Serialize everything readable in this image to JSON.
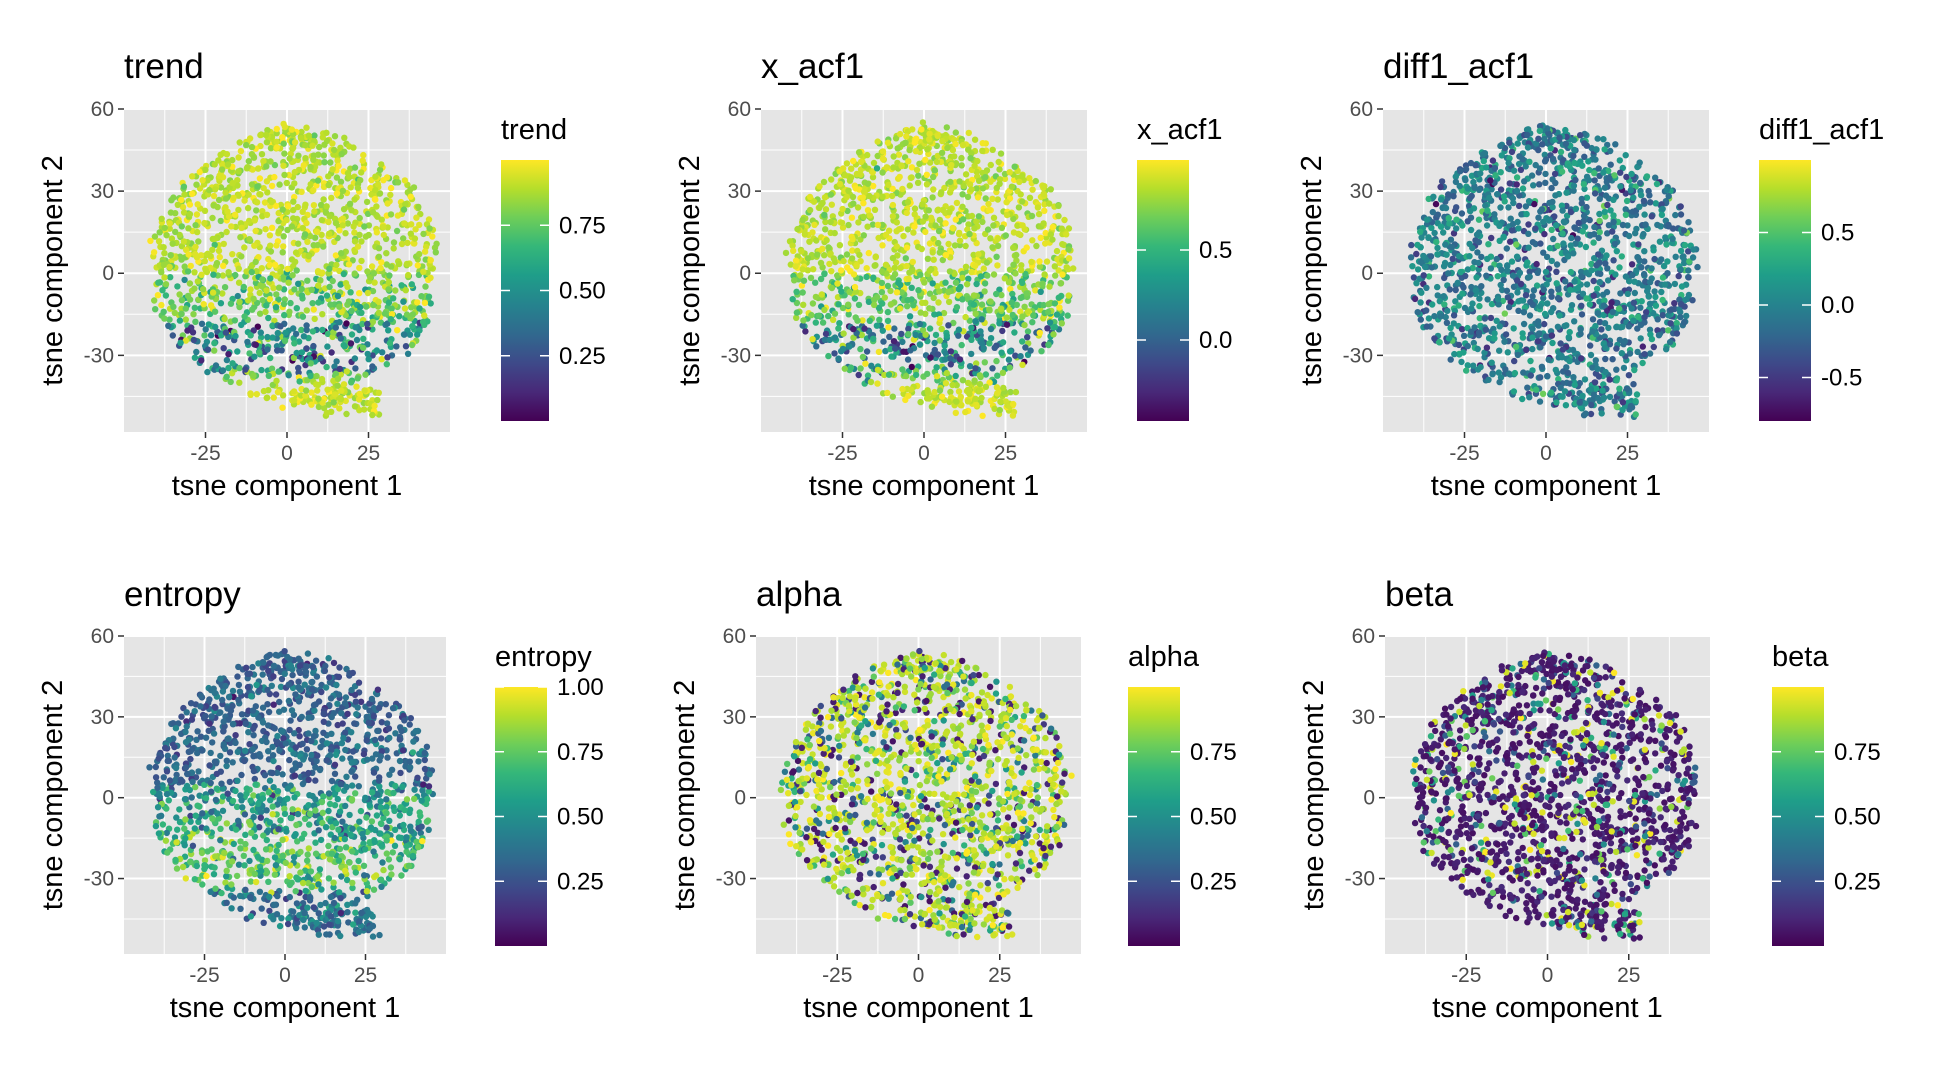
{
  "chart_data": [
    {
      "type": "scatter",
      "title": "trend",
      "xlabel": "tsne component 1",
      "ylabel": "tsne component 2",
      "xlim": [
        -50,
        50
      ],
      "ylim": [
        -58,
        60
      ],
      "xticks": [
        -25,
        0,
        25
      ],
      "yticks": [
        60,
        30,
        0,
        -30
      ],
      "xtick_labels": [
        "-25",
        "0",
        "25"
      ],
      "ytick_labels": [
        "60",
        "30",
        "0",
        "-30"
      ],
      "legend_title": "trend",
      "color_range": [
        0.0,
        1.0
      ],
      "legend_ticks": [
        0.75,
        0.5,
        0.25
      ],
      "legend_tick_labels": [
        "0.75",
        "0.50",
        "0.25"
      ],
      "pattern": "high_top_low_band",
      "grid": true,
      "legend_placement": "right"
    },
    {
      "type": "scatter",
      "title": "x_acf1",
      "xlabel": "tsne component 1",
      "ylabel": "tsne component 2",
      "xlim": [
        -50,
        50
      ],
      "ylim": [
        -58,
        60
      ],
      "xticks": [
        -25,
        0,
        25
      ],
      "yticks": [
        60,
        30,
        0,
        -30
      ],
      "xtick_labels": [
        "-25",
        "0",
        "25"
      ],
      "ytick_labels": [
        "60",
        "30",
        "0",
        "-30"
      ],
      "legend_title": "x_acf1",
      "color_range": [
        -0.45,
        1.0
      ],
      "legend_ticks": [
        0.5,
        0.0
      ],
      "legend_tick_labels": [
        "0.5",
        "0.0"
      ],
      "pattern": "high_top_low_band",
      "grid": true,
      "legend_placement": "right"
    },
    {
      "type": "scatter",
      "title": "diff1_acf1",
      "xlabel": "tsne component 1",
      "ylabel": "tsne component 2",
      "xlim": [
        -50,
        50
      ],
      "ylim": [
        -58,
        60
      ],
      "xticks": [
        -25,
        0,
        25
      ],
      "yticks": [
        60,
        30,
        0,
        -30
      ],
      "xtick_labels": [
        "-25",
        "0",
        "25"
      ],
      "ytick_labels": [
        "60",
        "30",
        "0",
        "-30"
      ],
      "legend_title": "diff1_acf1",
      "color_range": [
        -0.8,
        1.0
      ],
      "legend_ticks": [
        0.5,
        0.0,
        -0.5
      ],
      "legend_tick_labels": [
        "0.5",
        "0.0",
        "-0.5"
      ],
      "pattern": "mid_uniform",
      "grid": true,
      "legend_placement": "right"
    },
    {
      "type": "scatter",
      "title": "entropy",
      "xlabel": "tsne component 1",
      "ylabel": "tsne component 2",
      "xlim": [
        -50,
        50
      ],
      "ylim": [
        -58,
        60
      ],
      "xticks": [
        -25,
        0,
        25
      ],
      "yticks": [
        60,
        30,
        0,
        -30
      ],
      "xtick_labels": [
        "-25",
        "0",
        "25"
      ],
      "ytick_labels": [
        "60",
        "30",
        "0",
        "-30"
      ],
      "legend_title": "entropy",
      "color_range": [
        0.0,
        1.0
      ],
      "legend_ticks": [
        1.0,
        0.75,
        0.5,
        0.25
      ],
      "legend_tick_labels": [
        "1.00",
        "0.75",
        "0.50",
        "0.25"
      ],
      "pattern": "low_top_high_band",
      "grid": true,
      "legend_placement": "right"
    },
    {
      "type": "scatter",
      "title": "alpha",
      "xlabel": "tsne component 1",
      "ylabel": "tsne component 2",
      "xlim": [
        -50,
        50
      ],
      "ylim": [
        -58,
        60
      ],
      "xticks": [
        -25,
        0,
        25
      ],
      "yticks": [
        60,
        30,
        0,
        -30
      ],
      "xtick_labels": [
        "-25",
        "0",
        "25"
      ],
      "ytick_labels": [
        "60",
        "30",
        "0",
        "-30"
      ],
      "legend_title": "alpha",
      "color_range": [
        0.0,
        1.0
      ],
      "legend_ticks": [
        0.75,
        0.5,
        0.25
      ],
      "legend_tick_labels": [
        "0.75",
        "0.50",
        "0.25"
      ],
      "pattern": "mostly_high_mixed",
      "grid": true,
      "legend_placement": "right"
    },
    {
      "type": "scatter",
      "title": "beta",
      "xlabel": "tsne component 1",
      "ylabel": "tsne component 2",
      "xlim": [
        -50,
        50
      ],
      "ylim": [
        -58,
        60
      ],
      "xticks": [
        -25,
        0,
        25
      ],
      "yticks": [
        60,
        30,
        0,
        -30
      ],
      "xtick_labels": [
        "-25",
        "0",
        "25"
      ],
      "ytick_labels": [
        "60",
        "30",
        "0",
        "-30"
      ],
      "legend_title": "beta",
      "color_range": [
        0.0,
        1.0
      ],
      "legend_ticks": [
        0.75,
        0.5,
        0.25
      ],
      "legend_tick_labels": [
        "0.75",
        "0.50",
        "0.25"
      ],
      "pattern": "mostly_low_mixed",
      "grid": true,
      "legend_placement": "right"
    }
  ],
  "colors": {
    "panel_background": "#e5e5e5",
    "gridline": "#ffffff",
    "tick_text": "#4d4d4d",
    "viridis": [
      "#440154",
      "#482878",
      "#3e4989",
      "#31688e",
      "#26828e",
      "#1f9e89",
      "#35b779",
      "#6ece58",
      "#b5de2b",
      "#fde725"
    ]
  }
}
